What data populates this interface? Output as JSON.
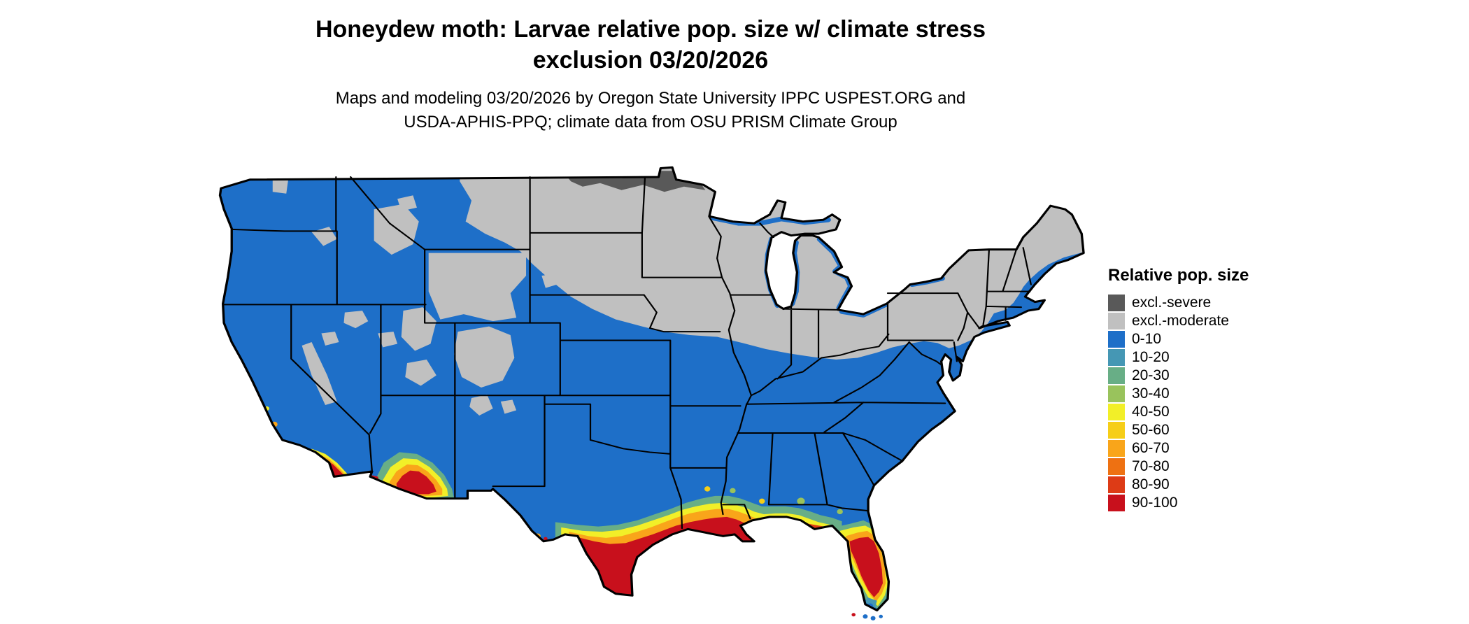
{
  "header": {
    "title_line1": "Honeydew moth: Larvae relative pop. size w/ climate stress",
    "title_line2": "exclusion 03/20/2026",
    "subtitle_line1": "Maps and modeling 03/20/2026 by Oregon State University IPPC USPEST.ORG and",
    "subtitle_line2": "USDA-APHIS-PPQ; climate data from OSU PRISM Climate Group"
  },
  "legend": {
    "title": "Relative pop. size",
    "items": [
      {
        "label": "excl.-severe",
        "color": "#595959"
      },
      {
        "label": "excl.-moderate",
        "color": "#c0c0c0"
      },
      {
        "label": "0-10",
        "color": "#1e6fc8"
      },
      {
        "label": "10-20",
        "color": "#4597b4"
      },
      {
        "label": "20-30",
        "color": "#68ae86"
      },
      {
        "label": "30-40",
        "color": "#99c35c"
      },
      {
        "label": "40-50",
        "color": "#f2ef28"
      },
      {
        "label": "50-60",
        "color": "#f6ce17"
      },
      {
        "label": "60-70",
        "color": "#f9a51a"
      },
      {
        "label": "70-80",
        "color": "#ee7112"
      },
      {
        "label": "80-90",
        "color": "#dd3b16"
      },
      {
        "label": "90-100",
        "color": "#c8101c"
      }
    ]
  },
  "map": {
    "region": "Continental United States",
    "background_color": "#ffffff",
    "boundary_color": "#000000"
  }
}
